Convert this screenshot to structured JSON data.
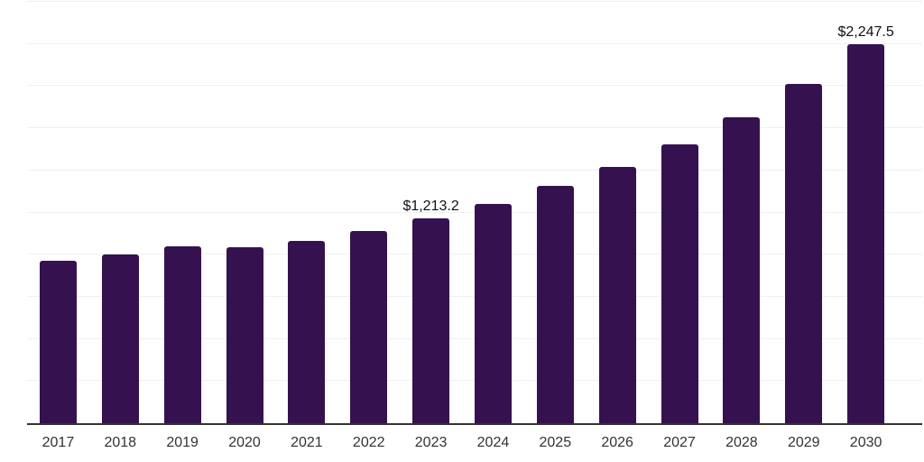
{
  "chart_data": {
    "type": "bar",
    "title": "",
    "xlabel": "",
    "ylabel": "",
    "categories": [
      "2017",
      "2018",
      "2019",
      "2020",
      "2021",
      "2022",
      "2023",
      "2024",
      "2025",
      "2026",
      "2027",
      "2028",
      "2029",
      "2030"
    ],
    "values": [
      962,
      999,
      1047,
      1043,
      1081,
      1143,
      1213.2,
      1302,
      1407,
      1519,
      1656,
      1816,
      2011,
      2247.5
    ],
    "data_labels": [
      "",
      "",
      "",
      "",
      "",
      "",
      "$1,213.2",
      "",
      "",
      "",
      "",
      "",
      "",
      "$2,247.5"
    ],
    "ylim": [
      0,
      2500
    ],
    "gridline_step": 250,
    "grid": true,
    "legend": "none",
    "bar_color": "#35124F",
    "gridline_color": "#f0f0f0",
    "axis_line_color": "#333333",
    "label_color": "#111111",
    "tick_label_color": "#333333"
  }
}
